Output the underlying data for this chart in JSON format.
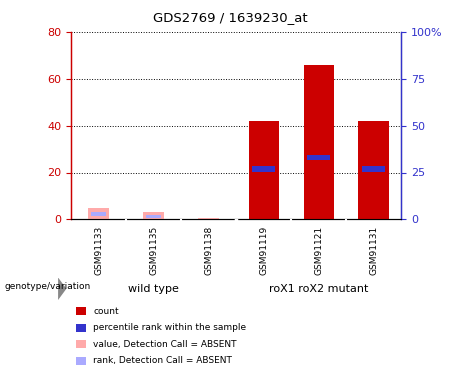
{
  "title": "GDS2769 / 1639230_at",
  "samples": [
    "GSM91133",
    "GSM91135",
    "GSM91138",
    "GSM91119",
    "GSM91121",
    "GSM91131"
  ],
  "count_values": [
    0,
    0,
    0,
    42,
    66,
    42
  ],
  "rank_values": [
    0,
    0,
    0,
    27,
    33,
    27
  ],
  "absent_count_values": [
    5,
    3,
    0.5,
    0,
    0,
    0
  ],
  "absent_rank_values": [
    3,
    1.5,
    0,
    0,
    0,
    0
  ],
  "count_color": "#cc0000",
  "rank_color": "#3333cc",
  "absent_count_color": "#ffaaaa",
  "absent_rank_color": "#aaaaff",
  "left_ylim": [
    0,
    80
  ],
  "right_ylim": [
    0,
    100
  ],
  "left_yticks": [
    0,
    20,
    40,
    60,
    80
  ],
  "right_yticks": [
    0,
    25,
    50,
    75,
    100
  ],
  "right_yticklabels": [
    "0",
    "25",
    "50",
    "75",
    "100%"
  ],
  "background_plot": "#ffffff",
  "background_lower": "#cccccc",
  "background_group": "#66ee66",
  "left_axis_color": "#cc0000",
  "right_axis_color": "#3333cc",
  "wild_type_label": "wild type",
  "mutant_label": "roX1 roX2 mutant",
  "genotype_label": "genotype/variation",
  "legend_items": [
    {
      "color": "#cc0000",
      "label": "count"
    },
    {
      "color": "#3333cc",
      "label": "percentile rank within the sample"
    },
    {
      "color": "#ffaaaa",
      "label": "value, Detection Call = ABSENT"
    },
    {
      "color": "#aaaaff",
      "label": "rank, Detection Call = ABSENT"
    }
  ]
}
